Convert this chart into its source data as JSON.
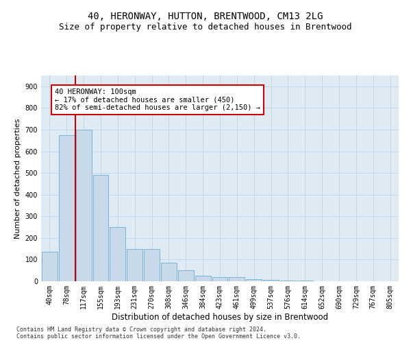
{
  "title": "40, HERONWAY, HUTTON, BRENTWOOD, CM13 2LG",
  "subtitle": "Size of property relative to detached houses in Brentwood",
  "xlabel": "Distribution of detached houses by size in Brentwood",
  "ylabel": "Number of detached properties",
  "footer_line1": "Contains HM Land Registry data © Crown copyright and database right 2024.",
  "footer_line2": "Contains public sector information licensed under the Open Government Licence v3.0.",
  "bar_labels": [
    "40sqm",
    "78sqm",
    "117sqm",
    "155sqm",
    "193sqm",
    "231sqm",
    "270sqm",
    "308sqm",
    "346sqm",
    "384sqm",
    "423sqm",
    "461sqm",
    "499sqm",
    "537sqm",
    "576sqm",
    "614sqm",
    "652sqm",
    "690sqm",
    "729sqm",
    "767sqm",
    "805sqm"
  ],
  "bar_values": [
    135,
    675,
    700,
    490,
    250,
    150,
    148,
    87,
    50,
    25,
    18,
    18,
    10,
    5,
    3,
    2,
    1,
    1,
    0,
    0,
    0
  ],
  "bar_color": "#c8daea",
  "bar_edge_color": "#6aadd5",
  "annotation_text": "40 HERONWAY: 100sqm\n← 17% of detached houses are smaller (450)\n82% of semi-detached houses are larger (2,150) →",
  "annotation_box_color": "#ffffff",
  "annotation_box_edge_color": "#cc0000",
  "vline_color": "#cc0000",
  "ylim": [
    0,
    950
  ],
  "yticks": [
    0,
    100,
    200,
    300,
    400,
    500,
    600,
    700,
    800,
    900
  ],
  "grid_color": "#c0d4e8",
  "background_color": "#deeaf4",
  "title_fontsize": 10,
  "subtitle_fontsize": 9,
  "xlabel_fontsize": 8.5,
  "ylabel_fontsize": 8,
  "tick_fontsize": 7,
  "annotation_fontsize": 7.5,
  "footer_fontsize": 6
}
